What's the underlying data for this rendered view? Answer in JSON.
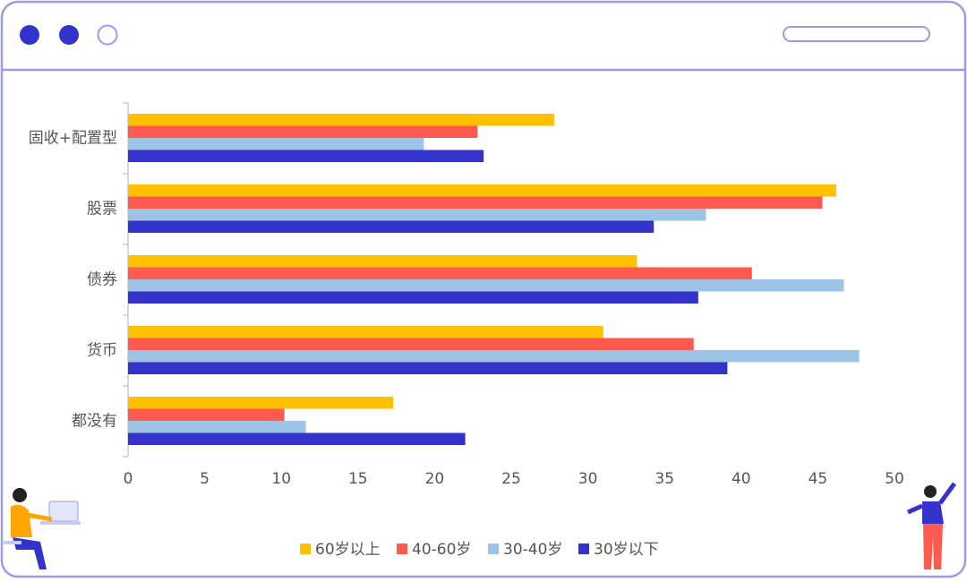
{
  "chart_data": {
    "type": "hbar",
    "categories": [
      "固收+配置型",
      "股票",
      "债券",
      "货币",
      "都没有"
    ],
    "series": [
      {
        "name": "60岁以上",
        "color": "#ffc000",
        "values": [
          27.8,
          46.2,
          33.2,
          31.0,
          17.3
        ]
      },
      {
        "name": "40-60岁",
        "color": "#ff5a50",
        "values": [
          22.8,
          45.3,
          40.7,
          36.9,
          10.2
        ]
      },
      {
        "name": "30-40岁",
        "color": "#9dc3e6",
        "values": [
          19.3,
          37.7,
          46.7,
          47.7,
          11.6
        ]
      },
      {
        "name": "30岁以下",
        "color": "#3333cc",
        "values": [
          23.2,
          34.3,
          37.2,
          39.1,
          22.0
        ]
      }
    ],
    "xlim": [
      0,
      50
    ],
    "xticks": [
      0,
      5,
      10,
      15,
      20,
      25,
      30,
      35,
      40,
      45,
      50
    ],
    "legend": "bottom"
  }
}
